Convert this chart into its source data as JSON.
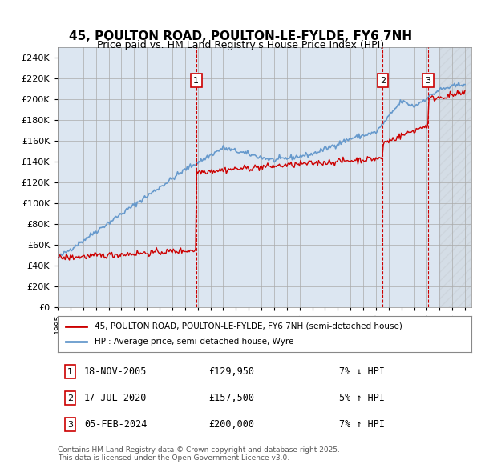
{
  "title": "45, POULTON ROAD, POULTON-LE-FYLDE, FY6 7NH",
  "subtitle": "Price paid vs. HM Land Registry's House Price Index (HPI)",
  "legend_line1": "45, POULTON ROAD, POULTON-LE-FYLDE, FY6 7NH (semi-detached house)",
  "legend_line2": "HPI: Average price, semi-detached house, Wyre",
  "footer": "Contains HM Land Registry data © Crown copyright and database right 2025.\nThis data is licensed under the Open Government Licence v3.0.",
  "transactions": [
    {
      "num": 1,
      "date": "18-NOV-2005",
      "price": 129950,
      "pct": "7%",
      "dir": "↓",
      "year": 2005.88
    },
    {
      "num": 2,
      "date": "17-JUL-2020",
      "price": 157500,
      "pct": "5%",
      "dir": "↑",
      "year": 2020.54
    },
    {
      "num": 3,
      "date": "05-FEB-2024",
      "price": 200000,
      "pct": "7%",
      "dir": "↑",
      "year": 2024.09
    }
  ],
  "ylim": [
    0,
    250000
  ],
  "yticks": [
    0,
    20000,
    40000,
    60000,
    80000,
    100000,
    120000,
    140000,
    160000,
    180000,
    200000,
    220000,
    240000
  ],
  "xlim_start": 1995.0,
  "xlim_end": 2027.5,
  "hatch_start": 2025.0,
  "red_color": "#cc0000",
  "blue_color": "#6699cc",
  "background_color": "#dce6f1",
  "plot_bg": "#ffffff",
  "hatch_color": "#cccccc"
}
